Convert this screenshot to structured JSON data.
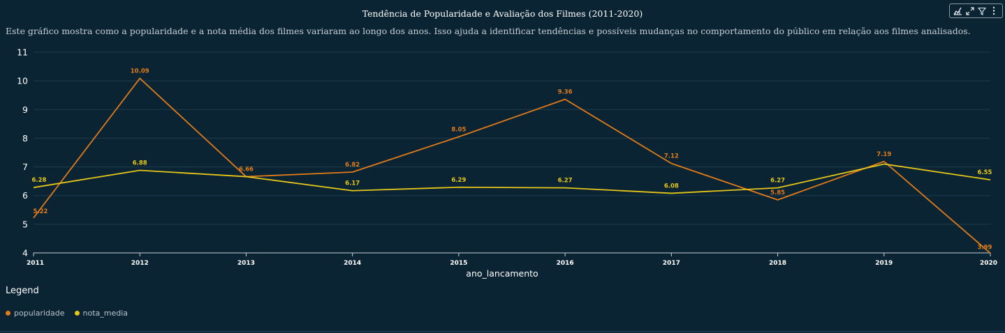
{
  "chart_data": {
    "type": "line",
    "title": "Tendência de Popularidade e Avaliação dos Filmes (2011-2020)",
    "subtitle": "Este gráfico mostra como a popularidade e a nota média dos filmes variaram ao longo dos anos. Isso ajuda a identificar tendências e possíveis mudanças no comportamento do público em relação aos filmes analisados.",
    "xlabel": "ano_lancamento",
    "ylabel": "",
    "x": [
      "2011",
      "2012",
      "2013",
      "2014",
      "2015",
      "2016",
      "2017",
      "2018",
      "2019",
      "2020"
    ],
    "ylim": [
      4,
      11
    ],
    "yticks": [
      4,
      5,
      6,
      7,
      8,
      9,
      10,
      11
    ],
    "grid": true,
    "legend_title": "Legend",
    "legend_position": "bottom-left",
    "series": [
      {
        "name": "popularidade",
        "color": "#e07b1a",
        "values": [
          5.22,
          10.09,
          6.66,
          6.82,
          8.05,
          9.36,
          7.12,
          5.85,
          7.19,
          3.99
        ],
        "labels": [
          "5.22",
          "10.09",
          "6.66",
          "6.82",
          "8.05",
          "9.36",
          "7.12",
          "5.85",
          "7.19",
          "3.99"
        ]
      },
      {
        "name": "nota_media",
        "color": "#e6c619",
        "values": [
          6.28,
          6.88,
          6.66,
          6.17,
          6.29,
          6.27,
          6.08,
          6.27,
          7.1,
          6.55
        ],
        "labels": [
          "6.28",
          "6.88",
          "",
          "6.17",
          "6.29",
          "6.27",
          "6.08",
          "6.27",
          "",
          "6.55"
        ]
      }
    ]
  },
  "toolbar": {
    "icons": [
      "chart-options-icon",
      "expand-icon",
      "filter-icon",
      "more-options-icon"
    ]
  },
  "colors": {
    "background": "#0b2433",
    "grid": "#1d3d4e",
    "axis": "#c9d2d8"
  }
}
